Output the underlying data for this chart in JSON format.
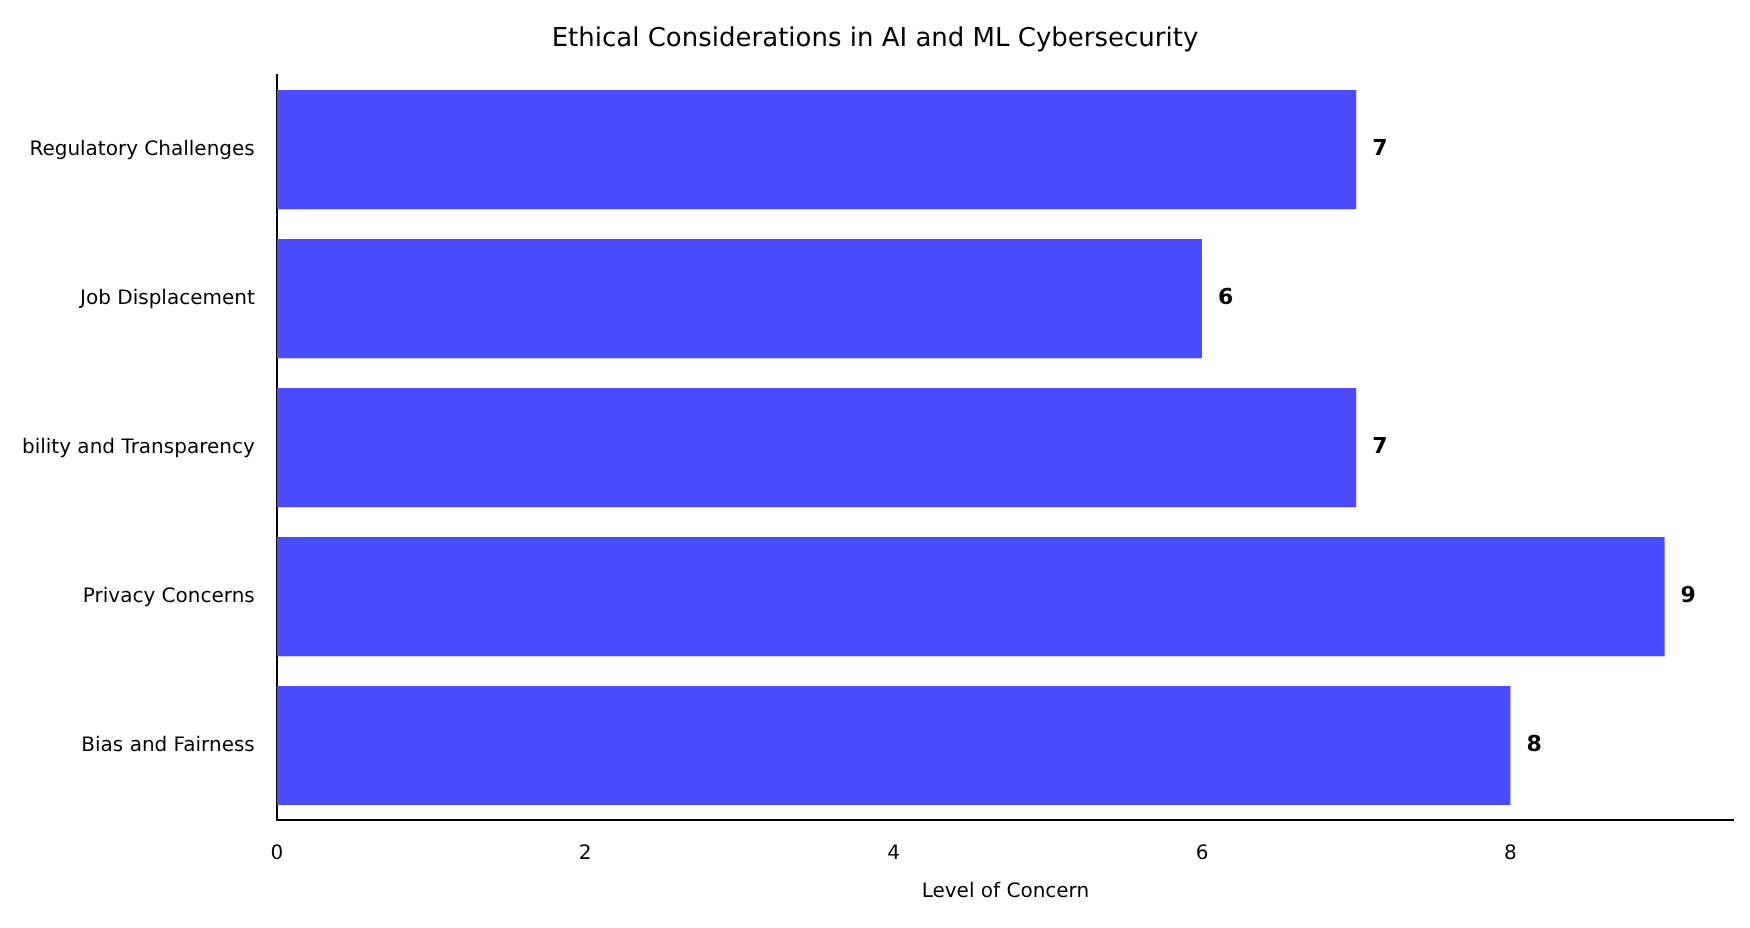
{
  "chart_data": {
    "type": "bar",
    "orientation": "horizontal",
    "title": "Ethical Considerations in AI and ML Cybersecurity",
    "xlabel": "Level of Concern",
    "categories": [
      "Regulatory Challenges",
      "Job Displacement",
      "bility and Transparency",
      "Privacy Concerns",
      "Bias and Fairness"
    ],
    "values": [
      7,
      6,
      7,
      9,
      8
    ],
    "color": "#4b4bff",
    "xlim": [
      0,
      9.45
    ],
    "xticks": [
      0,
      2,
      4,
      6,
      8
    ],
    "grid": false,
    "legend": false,
    "data_labels": true
  }
}
